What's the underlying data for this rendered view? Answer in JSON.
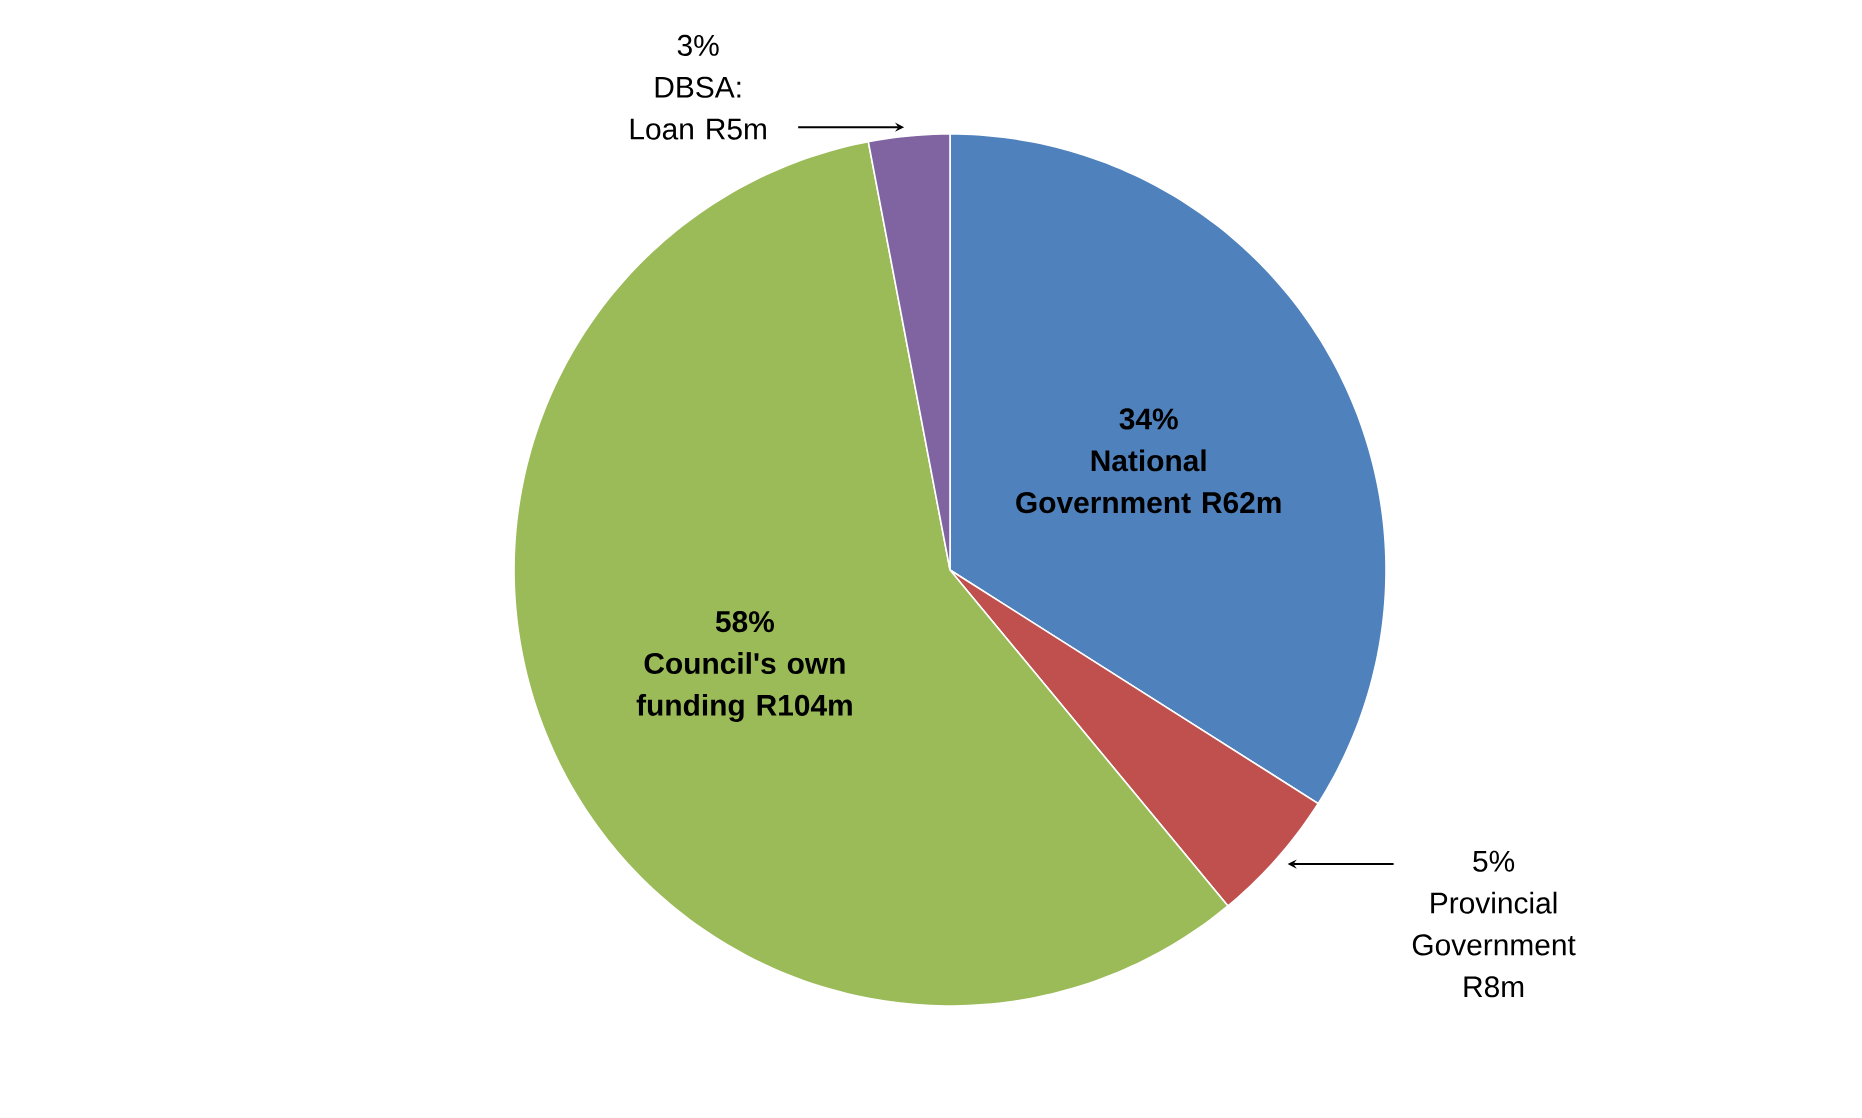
{
  "chart_data": {
    "type": "pie",
    "categories": [
      "National Government R62m",
      "Provincial Government R8m",
      "Council's own funding R104m",
      "DBSA: Loan R5m"
    ],
    "values": [
      34,
      5,
      58,
      3
    ],
    "value_labels": [
      "34%",
      "5%",
      "58%",
      "3%"
    ],
    "colors": [
      "#4f81bd",
      "#c0504d",
      "#9bbb59",
      "#8064a2"
    ]
  }
}
